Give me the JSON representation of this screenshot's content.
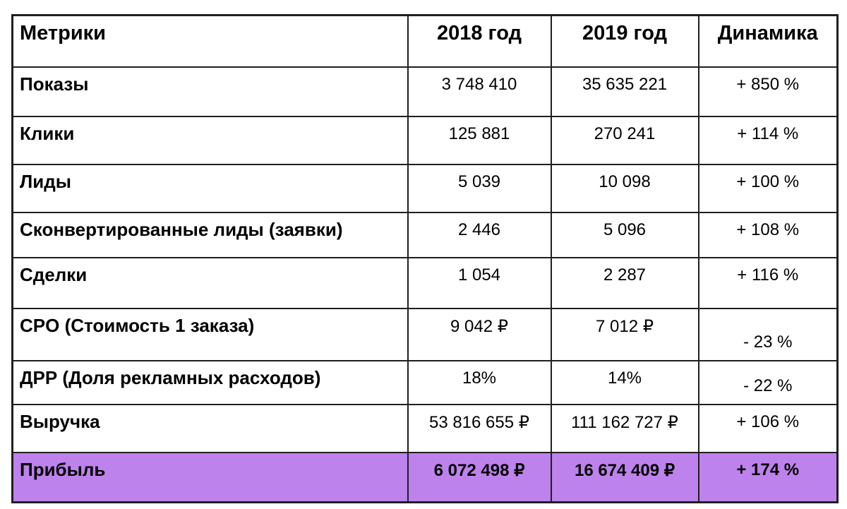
{
  "chart_data": {
    "type": "table",
    "title": "",
    "highlight_color": "#be82ec",
    "columns": [
      "Метрики",
      "2018 год",
      "2019 год",
      "Динамика"
    ],
    "rows": [
      {
        "metric": "Показы",
        "y2018": "3 748 410",
        "y2019": "35 635 221",
        "dynamics": "+ 850 %",
        "highlight": false,
        "dynamics_lowered": false
      },
      {
        "metric": "Клики",
        "y2018": "125 881",
        "y2019": "270 241",
        "dynamics": "+ 114 %",
        "highlight": false,
        "dynamics_lowered": false
      },
      {
        "metric": "Лиды",
        "y2018": "5 039",
        "y2019": "10 098",
        "dynamics": "+ 100 %",
        "highlight": false,
        "dynamics_lowered": false
      },
      {
        "metric": "Сконвертированные лиды (заявки)",
        "y2018": "2 446",
        "y2019": "5 096",
        "dynamics": "+ 108 %",
        "highlight": false,
        "dynamics_lowered": false
      },
      {
        "metric": "Сделки",
        "y2018": "1 054",
        "y2019": "2 287",
        "dynamics": "+ 116 %",
        "highlight": false,
        "dynamics_lowered": false
      },
      {
        "metric": "CPO (Стоимость 1 заказа)",
        "y2018": "9 042 ₽",
        "y2019": "7 012 ₽",
        "dynamics": "- 23 %",
        "highlight": false,
        "dynamics_lowered": true
      },
      {
        "metric": "ДРР (Доля рекламных расходов)",
        "y2018": "18%",
        "y2019": "14%",
        "dynamics": "- 22 %",
        "highlight": false,
        "dynamics_lowered": true
      },
      {
        "metric": "Выручка",
        "y2018": "53 816 655 ₽",
        "y2019": "111 162 727 ₽",
        "dynamics": "+ 106 %",
        "highlight": false,
        "dynamics_lowered": false
      },
      {
        "metric": "Прибыль",
        "y2018": "6 072 498 ₽",
        "y2019": "16 674 409 ₽",
        "dynamics": "+ 174 %",
        "highlight": true,
        "dynamics_lowered": false
      }
    ]
  }
}
